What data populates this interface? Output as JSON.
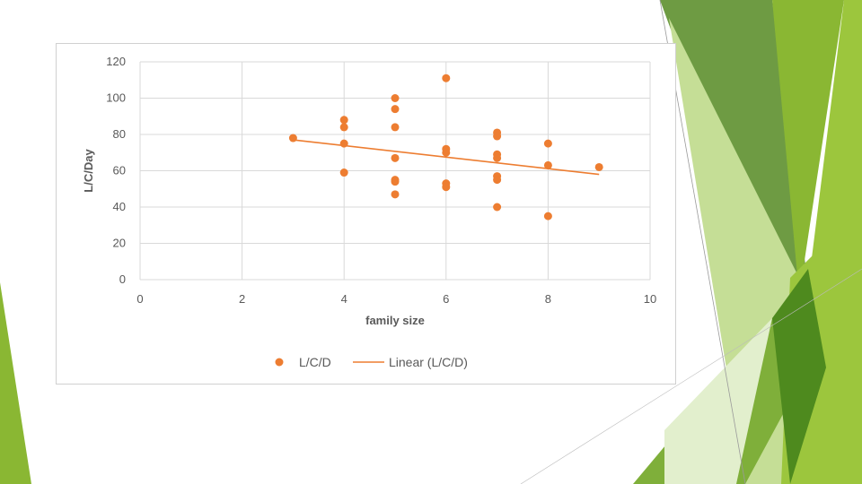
{
  "theme": {
    "marker_color": "#ED7D31",
    "trend_color": "#ED7D31",
    "grid_color": "#D9D9D9",
    "greens": [
      "#6E9B43",
      "#8AB733",
      "#9CC63D",
      "#C5DE96",
      "#4E8A1E",
      "#E2EFCD",
      "#7FAF3A"
    ]
  },
  "chart_data": {
    "type": "scatter",
    "xlabel": "family size",
    "ylabel": "L/C/Day",
    "xlim": [
      0,
      10
    ],
    "ylim": [
      0,
      120
    ],
    "xticks": [
      0,
      2,
      4,
      6,
      8,
      10
    ],
    "yticks": [
      0,
      20,
      40,
      60,
      80,
      100,
      120
    ],
    "grid": true,
    "legend_position": "bottom",
    "series": [
      {
        "name": "L/C/D",
        "points": [
          [
            3,
            78
          ],
          [
            4,
            88
          ],
          [
            4,
            84
          ],
          [
            4,
            75
          ],
          [
            4,
            59
          ],
          [
            5,
            100
          ],
          [
            5,
            94
          ],
          [
            5,
            84
          ],
          [
            5,
            67
          ],
          [
            5,
            55
          ],
          [
            5,
            54
          ],
          [
            5,
            47
          ],
          [
            6,
            111
          ],
          [
            6,
            72
          ],
          [
            6,
            70
          ],
          [
            6,
            53
          ],
          [
            6,
            51
          ],
          [
            7,
            81
          ],
          [
            7,
            79
          ],
          [
            7,
            69
          ],
          [
            7,
            67
          ],
          [
            7,
            57
          ],
          [
            7,
            55
          ],
          [
            7,
            40
          ],
          [
            8,
            75
          ],
          [
            8,
            63
          ],
          [
            8,
            35
          ],
          [
            9,
            62
          ]
        ]
      }
    ],
    "trendline": {
      "name": "Linear (L/C/D)",
      "from": [
        3,
        77
      ],
      "to": [
        9,
        58
      ]
    }
  }
}
